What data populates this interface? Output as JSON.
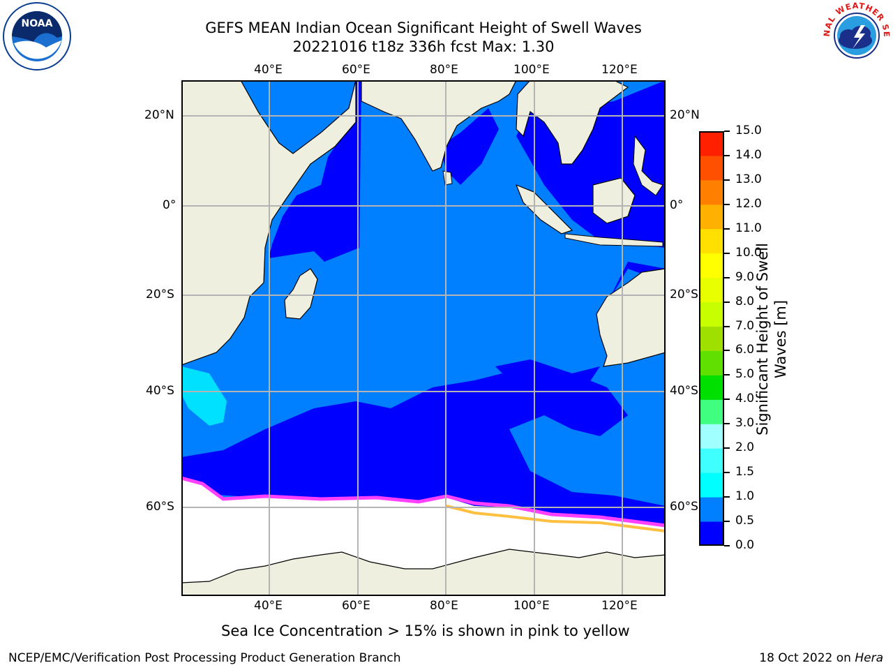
{
  "header": {
    "title_line1": "GEFS MEAN Indian Ocean Significant Height of Swell Waves",
    "title_line2": "20221016 t18z 336h fcst   Max: 1.30"
  },
  "logos": {
    "left": {
      "icon": "noaa-logo",
      "text": "NOAA"
    },
    "right": {
      "icon": "national-weather-service-logo",
      "text": "NATIONAL WEATHER SERVICE"
    }
  },
  "map": {
    "top_lon_labels": [
      "40°E",
      "60°E",
      "80°E",
      "100°E",
      "120°E"
    ],
    "bottom_lon_labels": [
      "40°E",
      "60°E",
      "80°E",
      "100°E",
      "120°E"
    ],
    "left_lat_labels": [
      "20°N",
      "0°",
      "20°S",
      "40°S",
      "60°S"
    ],
    "right_lat_labels": [
      "20°N",
      "0°",
      "20°S",
      "40°S",
      "60°S"
    ],
    "colors": {
      "land": "#efefdf",
      "sea_ice": "#ffffff",
      "swell_0_05": "#0000ff",
      "swell_05_10": "#0080ff",
      "swell_10_15": "#00e0ff",
      "grid": "#b4b4b4"
    }
  },
  "colorbar": {
    "label": "Significant Height of Swell Waves [m]",
    "ticks": [
      "15.0",
      "14.0",
      "13.0",
      "12.0",
      "11.0",
      "10.0",
      "9.0",
      "8.0",
      "7.0",
      "6.0",
      "5.0",
      "4.0",
      "3.0",
      "2.0",
      "1.5",
      "1.0",
      "0.5",
      "0.0"
    ],
    "colors": [
      "#0000ff",
      "#0080ff",
      "#00ffff",
      "#40ffff",
      "#a0ffff",
      "#40ff80",
      "#00e000",
      "#60e000",
      "#a0e000",
      "#c8ff00",
      "#e8ff00",
      "#ffff00",
      "#ffe000",
      "#ffb000",
      "#ff8000",
      "#ff5000",
      "#ff2000",
      "#ff0000"
    ]
  },
  "note": "Sea Ice Concentration > 15% is shown in pink to yellow",
  "footer": {
    "left": "NCEP/EMC/Verification Post Processing Product Generation Branch",
    "right_prefix": "18 Oct 2022 on ",
    "right_host": "Hera"
  }
}
